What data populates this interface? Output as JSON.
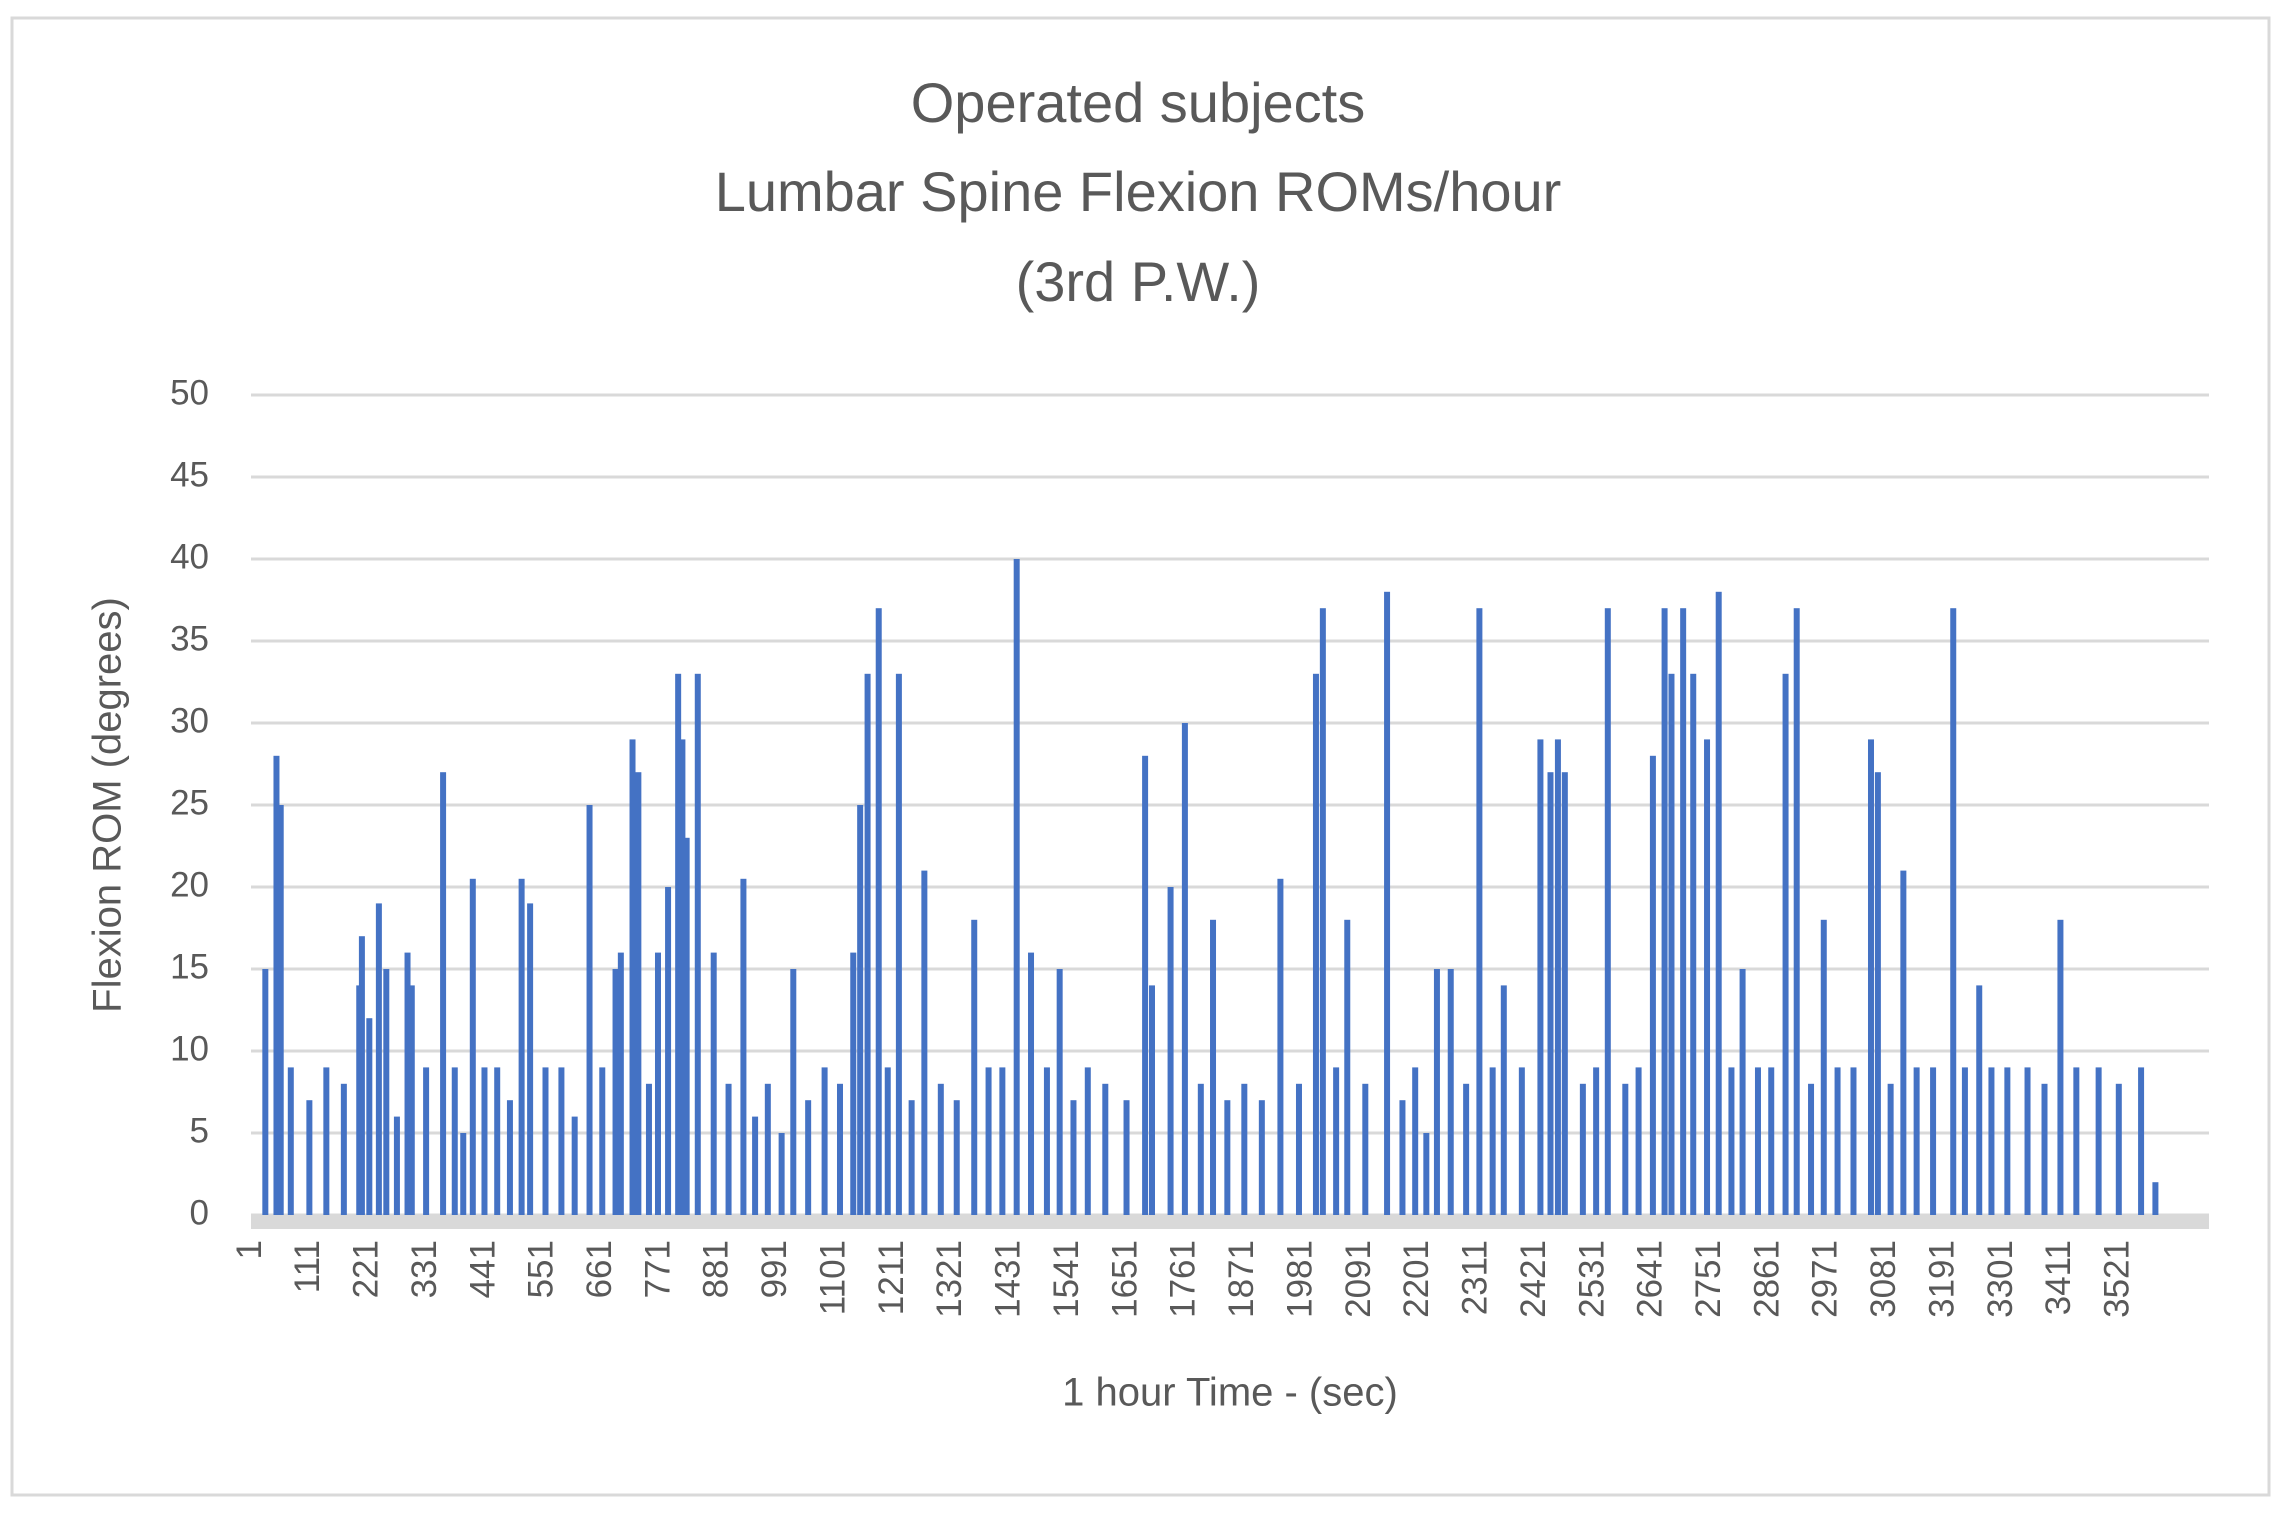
{
  "chart_data": {
    "type": "bar",
    "title": [
      "Operated subjects",
      "Lumbar Spine Flexion ROMs/hour",
      "(3rd P.W.)"
    ],
    "x_label": "1 hour Time - (sec)",
    "y_label": "Flexion ROM (degrees)",
    "color": "#4472c4",
    "grid": true,
    "xlim": [
      0,
      3690
    ],
    "xticks": [
      1,
      111,
      221,
      331,
      441,
      551,
      661,
      771,
      881,
      991,
      1101,
      1211,
      1321,
      1431,
      1541,
      1651,
      1761,
      1871,
      1981,
      2091,
      2201,
      2311,
      2421,
      2531,
      2641,
      2751,
      2861,
      2971,
      3081,
      3191,
      3301,
      3411,
      3521
    ],
    "ylim": [
      0,
      50
    ],
    "yticks": [
      0,
      5,
      10,
      15,
      20,
      25,
      30,
      35,
      40,
      45,
      50
    ],
    "x": [
      27,
      48,
      56,
      75,
      110,
      142,
      175,
      204,
      209,
      223,
      241,
      255,
      275,
      295,
      303,
      330,
      362,
      384,
      400,
      418,
      440,
      464,
      488,
      510,
      526,
      555,
      585,
      610,
      638,
      662,
      687,
      697,
      719,
      730,
      750,
      767,
      786,
      805,
      813,
      821,
      842,
      872,
      900,
      928,
      950,
      974,
      1000,
      1022,
      1050,
      1081,
      1110,
      1135,
      1148,
      1162,
      1183,
      1200,
      1221,
      1245,
      1269,
      1300,
      1330,
      1363,
      1390,
      1416,
      1443,
      1470,
      1500,
      1524,
      1550,
      1577,
      1610,
      1650,
      1685,
      1698,
      1733,
      1760,
      1790,
      1813,
      1840,
      1872,
      1905,
      1940,
      1975,
      2007,
      2020,
      2045,
      2066,
      2100,
      2141,
      2170,
      2194,
      2215,
      2235,
      2261,
      2290,
      2315,
      2340,
      2361,
      2395,
      2430,
      2449,
      2463,
      2476,
      2510,
      2535,
      2557,
      2590,
      2615,
      2642,
      2664,
      2677,
      2699,
      2718,
      2744,
      2766,
      2790,
      2811,
      2840,
      2865,
      2892,
      2913,
      2940,
      2964,
      2990,
      3020,
      3053,
      3066,
      3090,
      3114,
      3139,
      3170,
      3208,
      3230,
      3257,
      3280,
      3310,
      3348,
      3380,
      3410,
      3440,
      3482,
      3520,
      3562,
      3589
    ],
    "values": [
      15,
      28,
      25,
      9,
      7,
      9,
      8,
      14,
      17,
      12,
      19,
      15,
      6,
      16,
      14,
      9,
      27,
      9,
      5,
      20.5,
      9,
      9,
      7,
      20.5,
      19,
      9,
      9,
      6,
      25,
      9,
      15,
      16,
      29,
      27,
      8,
      16,
      20,
      33,
      29,
      23,
      33,
      16,
      8,
      20.5,
      6,
      8,
      5,
      15,
      7,
      9,
      8,
      16,
      25,
      33,
      37,
      9,
      33,
      7,
      21,
      8,
      7,
      18,
      9,
      9,
      40,
      16,
      9,
      15,
      7,
      9,
      8,
      7,
      28,
      14,
      20,
      30,
      8,
      18,
      7,
      8,
      7,
      20.5,
      8,
      33,
      37,
      9,
      18,
      8,
      38,
      7,
      9,
      5,
      15,
      15,
      8,
      37,
      9,
      14,
      9,
      29,
      27,
      29,
      27,
      8,
      9,
      37,
      8,
      9,
      28,
      37,
      33,
      37,
      33,
      29,
      38,
      9,
      15,
      9,
      9,
      33,
      37,
      8,
      18,
      9,
      9,
      29,
      27,
      8,
      21,
      9,
      9,
      37,
      9,
      14,
      9,
      9,
      9,
      8,
      18,
      9,
      9,
      8,
      9,
      2
    ]
  }
}
